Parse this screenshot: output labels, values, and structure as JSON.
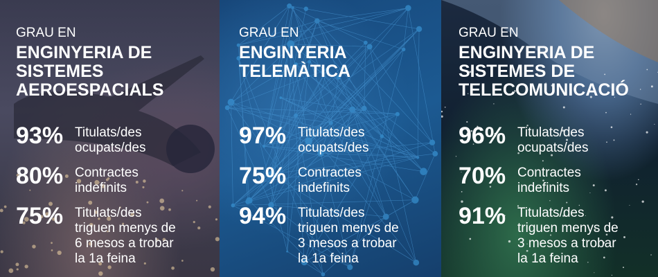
{
  "panels": [
    {
      "pre": "GRAU EN",
      "title": [
        "ENGINYERIA DE",
        "SISTEMES",
        "AEROESPACIALS"
      ],
      "stats": [
        {
          "value": "93%",
          "label": "Titulats/des\nocupats/des"
        },
        {
          "value": "80%",
          "label": "Contractes\nindefinits"
        },
        {
          "value": "75%",
          "label": "Titulats/des\ntriguen menys de\n6 mesos a trobar\nla 1a feina"
        }
      ]
    },
    {
      "pre": "GRAU EN",
      "title": [
        "ENGINYERIA",
        "TELEMÀTICA",
        ""
      ],
      "stats": [
        {
          "value": "97%",
          "label": "Titulats/des\nocupats/des"
        },
        {
          "value": "75%",
          "label": "Contractes\nindefinits"
        },
        {
          "value": "94%",
          "label": "Titulats/des\ntriguen menys de\n3 mesos a trobar\nla 1a feina"
        }
      ]
    },
    {
      "pre": "GRAU EN",
      "title": [
        "ENGINYERIA DE",
        "SISTEMES DE",
        "TELECOMUNICACIÓ"
      ],
      "stats": [
        {
          "value": "96%",
          "label": "Titulats/des\nocupats/des"
        },
        {
          "value": "70%",
          "label": "Contractes\nindefinits"
        },
        {
          "value": "91%",
          "label": "Titulats/des\ntriguen menys de\n3 mesos a trobar\nla 1a feina"
        }
      ]
    }
  ]
}
